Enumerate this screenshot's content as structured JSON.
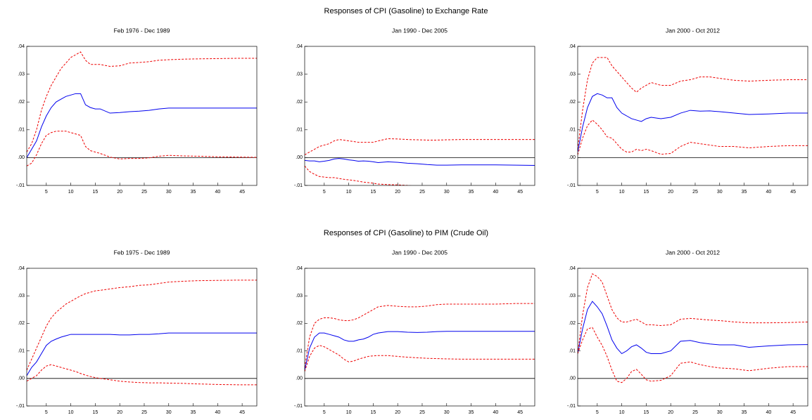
{
  "section_titles": [
    "Responses of CPI (Gasoline) to Exchange Rate",
    "Responses of CPI (Gasoline) to PIM (Crude Oil)"
  ],
  "chart_data": [
    {
      "type": "line",
      "title": "Feb 1976 - Dec 1989",
      "x": [
        1,
        2,
        3,
        4,
        5,
        6,
        7,
        8,
        9,
        10,
        11,
        12,
        13,
        14,
        15,
        16,
        18,
        20,
        22,
        24,
        26,
        28,
        30,
        33,
        36,
        40,
        44,
        48
      ],
      "xlim": [
        1,
        48
      ],
      "xticks": [
        5,
        10,
        15,
        20,
        25,
        30,
        35,
        40,
        45
      ],
      "ylim": [
        -0.01,
        0.04
      ],
      "yticks": [
        {
          "value": -0.01,
          "label": "-.01"
        },
        {
          "value": 0,
          "label": ".00"
        },
        {
          "value": 0.01,
          "label": ".01"
        },
        {
          "value": 0.02,
          "label": ".02"
        },
        {
          "value": 0.03,
          "label": ".03"
        },
        {
          "value": 0.04,
          "label": ".04"
        }
      ],
      "zero_line": true,
      "series": [
        {
          "color": "#0000ee",
          "dashed": false,
          "values": [
            0.0,
            0.003,
            0.006,
            0.011,
            0.015,
            0.018,
            0.02,
            0.021,
            0.022,
            0.0225,
            0.023,
            0.023,
            0.019,
            0.018,
            0.0175,
            0.0175,
            0.016,
            0.0162,
            0.0165,
            0.0167,
            0.017,
            0.0175,
            0.0178,
            0.0178,
            0.0178,
            0.0178,
            0.0178,
            0.0178
          ]
        },
        {
          "color": "#ee0000",
          "dashed": true,
          "values": [
            0.002,
            0.005,
            0.01,
            0.017,
            0.022,
            0.026,
            0.029,
            0.032,
            0.034,
            0.036,
            0.037,
            0.038,
            0.035,
            0.0335,
            0.0335,
            0.0335,
            0.0328,
            0.033,
            0.034,
            0.0342,
            0.0345,
            0.035,
            0.0352,
            0.0354,
            0.0355,
            0.0356,
            0.0357,
            0.0357
          ]
        },
        {
          "color": "#ee0000",
          "dashed": true,
          "values": [
            -0.003,
            -0.002,
            0.001,
            0.005,
            0.008,
            0.009,
            0.0095,
            0.0095,
            0.0095,
            0.009,
            0.0085,
            0.008,
            0.004,
            0.0025,
            0.002,
            0.0015,
            0.0002,
            -0.0005,
            -0.0003,
            -0.0003,
            -0.0001,
            0.0005,
            0.0008,
            0.0006,
            0.0005,
            0.0003,
            0.0002,
            0.0001
          ]
        }
      ]
    },
    {
      "type": "line",
      "title": "Jan 1990 - Dec 2005",
      "x": [
        1,
        2,
        3,
        4,
        5,
        6,
        7,
        8,
        9,
        10,
        11,
        12,
        13,
        14,
        15,
        16,
        18,
        20,
        22,
        24,
        26,
        28,
        30,
        33,
        36,
        40,
        44,
        48
      ],
      "xlim": [
        1,
        48
      ],
      "xticks": [
        5,
        10,
        15,
        20,
        25,
        30,
        35,
        40,
        45
      ],
      "ylim": [
        -0.01,
        0.04
      ],
      "yticks": [
        {
          "value": -0.01,
          "label": "-.01"
        },
        {
          "value": 0,
          "label": ".00"
        },
        {
          "value": 0.01,
          "label": ".01"
        },
        {
          "value": 0.02,
          "label": ".02"
        },
        {
          "value": 0.03,
          "label": ".03"
        },
        {
          "value": 0.04,
          "label": ".04"
        }
      ],
      "zero_line": true,
      "series": [
        {
          "color": "#0000ee",
          "dashed": false,
          "values": [
            -0.001,
            -0.0012,
            -0.0012,
            -0.0015,
            -0.0013,
            -0.001,
            -0.0005,
            -0.0003,
            -0.0005,
            -0.0008,
            -0.001,
            -0.0013,
            -0.0012,
            -0.0013,
            -0.0015,
            -0.0018,
            -0.0015,
            -0.0017,
            -0.002,
            -0.0022,
            -0.0025,
            -0.0027,
            -0.0027,
            -0.0026,
            -0.0026,
            -0.0026,
            -0.0027,
            -0.0028
          ]
        },
        {
          "color": "#ee0000",
          "dashed": true,
          "values": [
            0.001,
            0.002,
            0.003,
            0.004,
            0.0045,
            0.005,
            0.006,
            0.0065,
            0.0063,
            0.006,
            0.0058,
            0.0055,
            0.0055,
            0.0055,
            0.0055,
            0.006,
            0.0068,
            0.0067,
            0.0065,
            0.0064,
            0.0063,
            0.0063,
            0.0064,
            0.0065,
            0.0065,
            0.0065,
            0.0065,
            0.0065
          ]
        },
        {
          "color": "#ee0000",
          "dashed": true,
          "values": [
            -0.003,
            -0.005,
            -0.006,
            -0.0068,
            -0.007,
            -0.0072,
            -0.0072,
            -0.0075,
            -0.0078,
            -0.008,
            -0.0082,
            -0.0085,
            -0.0088,
            -0.009,
            -0.0092,
            -0.0095,
            -0.0097,
            -0.0098,
            -0.01,
            -0.0103,
            -0.0105,
            -0.0107,
            -0.0108,
            -0.011,
            -0.011,
            -0.011,
            -0.0112,
            -0.0113
          ]
        }
      ]
    },
    {
      "type": "line",
      "title": "Jan 2000 - Oct 2012",
      "x": [
        1,
        2,
        3,
        4,
        5,
        6,
        7,
        8,
        9,
        10,
        11,
        12,
        13,
        14,
        15,
        16,
        18,
        20,
        22,
        24,
        26,
        28,
        30,
        33,
        36,
        40,
        44,
        48
      ],
      "xlim": [
        1,
        48
      ],
      "xticks": [
        5,
        10,
        15,
        20,
        25,
        30,
        35,
        40,
        45
      ],
      "ylim": [
        -0.01,
        0.04
      ],
      "yticks": [
        {
          "value": -0.01,
          "label": "-.01"
        },
        {
          "value": 0,
          "label": ".00"
        },
        {
          "value": 0.01,
          "label": ".01"
        },
        {
          "value": 0.02,
          "label": ".02"
        },
        {
          "value": 0.03,
          "label": ".03"
        },
        {
          "value": 0.04,
          "label": ".04"
        }
      ],
      "zero_line": true,
      "series": [
        {
          "color": "#0000ee",
          "dashed": false,
          "values": [
            0.002,
            0.011,
            0.018,
            0.022,
            0.023,
            0.0225,
            0.0215,
            0.0215,
            0.018,
            0.016,
            0.015,
            0.014,
            0.0135,
            0.013,
            0.014,
            0.0145,
            0.014,
            0.0145,
            0.016,
            0.017,
            0.0167,
            0.0168,
            0.0165,
            0.016,
            0.0155,
            0.0157,
            0.016,
            0.016
          ]
        },
        {
          "color": "#ee0000",
          "dashed": true,
          "values": [
            0.003,
            0.017,
            0.028,
            0.034,
            0.036,
            0.036,
            0.036,
            0.033,
            0.031,
            0.029,
            0.027,
            0.025,
            0.0235,
            0.025,
            0.026,
            0.027,
            0.026,
            0.026,
            0.0275,
            0.028,
            0.029,
            0.029,
            0.0285,
            0.0278,
            0.0275,
            0.0278,
            0.028,
            0.028
          ]
        },
        {
          "color": "#ee0000",
          "dashed": true,
          "values": [
            0.001,
            0.007,
            0.0115,
            0.0135,
            0.012,
            0.01,
            0.0075,
            0.007,
            0.005,
            0.003,
            0.002,
            0.002,
            0.003,
            0.0025,
            0.003,
            0.0025,
            0.0012,
            0.0015,
            0.004,
            0.0055,
            0.005,
            0.0045,
            0.004,
            0.004,
            0.0035,
            0.004,
            0.0043,
            0.0043
          ]
        }
      ]
    },
    {
      "type": "line",
      "title": "Feb 1975 - Dec 1989",
      "x": [
        1,
        2,
        3,
        4,
        5,
        6,
        7,
        8,
        9,
        10,
        11,
        12,
        13,
        14,
        15,
        16,
        18,
        20,
        22,
        24,
        26,
        28,
        30,
        33,
        36,
        40,
        44,
        48
      ],
      "xlim": [
        1,
        48
      ],
      "xticks": [
        5,
        10,
        15,
        20,
        25,
        30,
        35,
        40,
        45
      ],
      "ylim": [
        -0.01,
        0.04
      ],
      "yticks": [
        {
          "value": -0.01,
          "label": "-.01"
        },
        {
          "value": 0,
          "label": ".00"
        },
        {
          "value": 0.01,
          "label": ".01"
        },
        {
          "value": 0.02,
          "label": ".02"
        },
        {
          "value": 0.03,
          "label": ".03"
        },
        {
          "value": 0.04,
          "label": ".04"
        }
      ],
      "zero_line": true,
      "series": [
        {
          "color": "#0000ee",
          "dashed": false,
          "values": [
            0.001,
            0.004,
            0.006,
            0.009,
            0.012,
            0.0135,
            0.0143,
            0.015,
            0.0155,
            0.016,
            0.016,
            0.016,
            0.016,
            0.016,
            0.016,
            0.016,
            0.016,
            0.0158,
            0.0158,
            0.016,
            0.016,
            0.0162,
            0.0165,
            0.0165,
            0.0165,
            0.0165,
            0.0165,
            0.0165
          ]
        },
        {
          "color": "#ee0000",
          "dashed": true,
          "values": [
            0.003,
            0.007,
            0.011,
            0.015,
            0.019,
            0.022,
            0.024,
            0.0255,
            0.027,
            0.028,
            0.029,
            0.03,
            0.0308,
            0.0313,
            0.0318,
            0.032,
            0.0325,
            0.033,
            0.0333,
            0.0338,
            0.034,
            0.0345,
            0.035,
            0.0353,
            0.0355,
            0.0356,
            0.0357,
            0.0357
          ]
        },
        {
          "color": "#ee0000",
          "dashed": true,
          "values": [
            -0.001,
            0,
            0.001,
            0.003,
            0.0045,
            0.005,
            0.0045,
            0.004,
            0.0035,
            0.003,
            0.0025,
            0.0018,
            0.0012,
            0.0007,
            0.0003,
            0,
            -0.0005,
            -0.001,
            -0.0013,
            -0.0015,
            -0.0016,
            -0.0016,
            -0.0017,
            -0.0018,
            -0.002,
            -0.0022,
            -0.0023,
            -0.0023
          ]
        }
      ]
    },
    {
      "type": "line",
      "title": "Jan 1990 - Dec 2005",
      "x": [
        1,
        2,
        3,
        4,
        5,
        6,
        7,
        8,
        9,
        10,
        11,
        12,
        13,
        14,
        15,
        16,
        18,
        20,
        22,
        24,
        26,
        28,
        30,
        33,
        36,
        40,
        44,
        48
      ],
      "xlim": [
        1,
        48
      ],
      "xticks": [
        5,
        10,
        15,
        20,
        25,
        30,
        35,
        40,
        45
      ],
      "ylim": [
        -0.01,
        0.04
      ],
      "yticks": [
        {
          "value": -0.01,
          "label": "-.01"
        },
        {
          "value": 0,
          "label": ".00"
        },
        {
          "value": 0.01,
          "label": ".01"
        },
        {
          "value": 0.02,
          "label": ".02"
        },
        {
          "value": 0.03,
          "label": ".03"
        },
        {
          "value": 0.04,
          "label": ".04"
        }
      ],
      "zero_line": true,
      "series": [
        {
          "color": "#0000ee",
          "dashed": false,
          "values": [
            0.003,
            0.011,
            0.015,
            0.0165,
            0.0165,
            0.016,
            0.0155,
            0.015,
            0.014,
            0.0135,
            0.0135,
            0.014,
            0.0143,
            0.015,
            0.016,
            0.0165,
            0.017,
            0.017,
            0.0168,
            0.0167,
            0.0168,
            0.017,
            0.0171,
            0.0171,
            0.0171,
            0.0171,
            0.0171,
            0.0171
          ]
        },
        {
          "color": "#ee0000",
          "dashed": true,
          "values": [
            0.004,
            0.015,
            0.02,
            0.0215,
            0.022,
            0.022,
            0.0218,
            0.0213,
            0.021,
            0.021,
            0.0213,
            0.022,
            0.023,
            0.024,
            0.025,
            0.026,
            0.0265,
            0.0262,
            0.026,
            0.026,
            0.0263,
            0.0268,
            0.027,
            0.027,
            0.027,
            0.027,
            0.0272,
            0.0272
          ]
        },
        {
          "color": "#ee0000",
          "dashed": true,
          "values": [
            0.0025,
            0.008,
            0.011,
            0.012,
            0.0115,
            0.0105,
            0.0095,
            0.0085,
            0.007,
            0.006,
            0.0063,
            0.007,
            0.0075,
            0.008,
            0.0082,
            0.0083,
            0.0083,
            0.008,
            0.0077,
            0.0075,
            0.0073,
            0.0072,
            0.0071,
            0.007,
            0.007,
            0.007,
            0.007,
            0.007
          ]
        }
      ]
    },
    {
      "type": "line",
      "title": "Jan 2000 - Oct 2012",
      "x": [
        1,
        2,
        3,
        4,
        5,
        6,
        7,
        8,
        9,
        10,
        11,
        12,
        13,
        14,
        15,
        16,
        18,
        20,
        22,
        24,
        26,
        28,
        30,
        33,
        36,
        40,
        44,
        48
      ],
      "xlim": [
        1,
        48
      ],
      "xticks": [
        5,
        10,
        15,
        20,
        25,
        30,
        35,
        40,
        45
      ],
      "ylim": [
        -0.01,
        0.04
      ],
      "yticks": [
        {
          "value": -0.01,
          "label": "-.01"
        },
        {
          "value": 0,
          "label": ".00"
        },
        {
          "value": 0.01,
          "label": ".01"
        },
        {
          "value": 0.02,
          "label": ".02"
        },
        {
          "value": 0.03,
          "label": ".03"
        },
        {
          "value": 0.04,
          "label": ".04"
        }
      ],
      "zero_line": true,
      "series": [
        {
          "color": "#0000ee",
          "dashed": false,
          "values": [
            0.009,
            0.018,
            0.025,
            0.028,
            0.026,
            0.0235,
            0.019,
            0.014,
            0.011,
            0.009,
            0.01,
            0.0115,
            0.0122,
            0.011,
            0.0095,
            0.009,
            0.009,
            0.01,
            0.0135,
            0.0138,
            0.013,
            0.0125,
            0.0122,
            0.0122,
            0.0113,
            0.0118,
            0.0122,
            0.0123
          ]
        },
        {
          "color": "#ee0000",
          "dashed": true,
          "values": [
            0.009,
            0.023,
            0.033,
            0.038,
            0.037,
            0.035,
            0.03,
            0.025,
            0.022,
            0.0205,
            0.0205,
            0.021,
            0.0215,
            0.0205,
            0.0195,
            0.0195,
            0.0192,
            0.0195,
            0.0215,
            0.0218,
            0.0215,
            0.0212,
            0.021,
            0.0205,
            0.0202,
            0.0202,
            0.0203,
            0.0205
          ]
        },
        {
          "color": "#ee0000",
          "dashed": true,
          "values": [
            0.009,
            0.014,
            0.018,
            0.0185,
            0.015,
            0.012,
            0.008,
            0.003,
            -0.001,
            -0.0015,
            0,
            0.0025,
            0.0033,
            0.0015,
            -0.0005,
            -0.001,
            -0.0007,
            0.001,
            0.0055,
            0.006,
            0.005,
            0.0043,
            0.0038,
            0.0035,
            0.0028,
            0.0037,
            0.0043,
            0.0043
          ]
        }
      ]
    }
  ]
}
